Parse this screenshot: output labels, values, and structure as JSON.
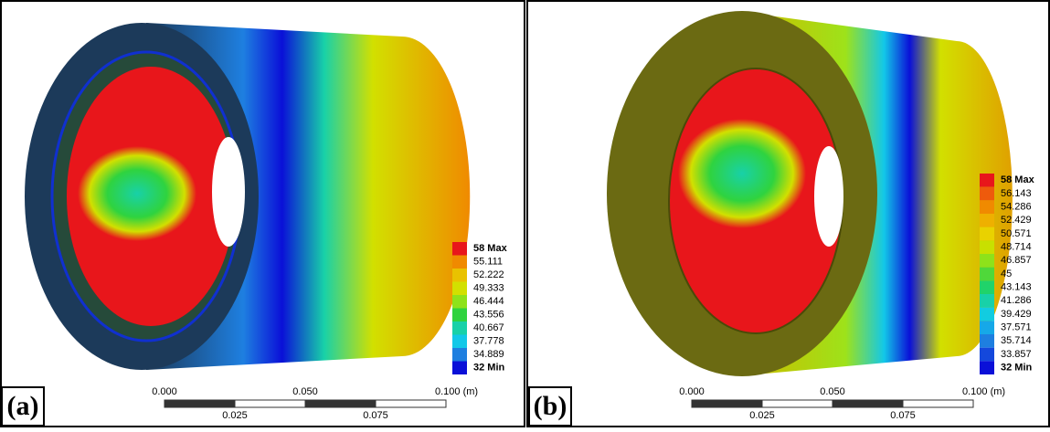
{
  "panels": [
    {
      "label": "(a)",
      "legend": [
        {
          "text": "58 Max",
          "color": "#e8161b"
        },
        {
          "text": "55.111",
          "color": "#f08a00"
        },
        {
          "text": "52.222",
          "color": "#e9c200"
        },
        {
          "text": "49.333",
          "color": "#d2e000"
        },
        {
          "text": "46.444",
          "color": "#8ee21a"
        },
        {
          "text": "43.556",
          "color": "#2fd33f"
        },
        {
          "text": "40.667",
          "color": "#18d1a8"
        },
        {
          "text": "37.778",
          "color": "#12c8e8"
        },
        {
          "text": "34.889",
          "color": "#1e7fe0"
        },
        {
          "text": "32 Min",
          "color": "#0a10d8"
        }
      ],
      "scale": {
        "top": [
          "0.000",
          "0.050",
          "0.100 (m)"
        ],
        "bottom": [
          "0.025",
          "0.075"
        ]
      }
    },
    {
      "label": "(b)",
      "legend": [
        {
          "text": "58 Max",
          "color": "#e8161b"
        },
        {
          "text": "56.143",
          "color": "#ee5a0c"
        },
        {
          "text": "54.286",
          "color": "#f08a00"
        },
        {
          "text": "52.429",
          "color": "#eeb000"
        },
        {
          "text": "50.571",
          "color": "#e9d200"
        },
        {
          "text": "48.714",
          "color": "#c8e000"
        },
        {
          "text": "46.857",
          "color": "#8ee21a"
        },
        {
          "text": "45",
          "color": "#4fd83a"
        },
        {
          "text": "43.143",
          "color": "#20d36a"
        },
        {
          "text": "41.286",
          "color": "#18d1a8"
        },
        {
          "text": "39.429",
          "color": "#12cce0"
        },
        {
          "text": "37.571",
          "color": "#16a8e8"
        },
        {
          "text": "35.714",
          "color": "#1e7fe0"
        },
        {
          "text": "33.857",
          "color": "#1448dc"
        },
        {
          "text": "32 Min",
          "color": "#0a10d8"
        }
      ],
      "scale": {
        "top": [
          "0.000",
          "0.050",
          "0.100 (m)"
        ],
        "bottom": [
          "0.025",
          "0.075"
        ]
      }
    }
  ]
}
